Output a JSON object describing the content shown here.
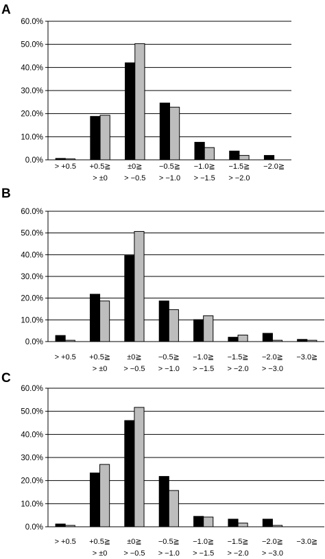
{
  "chart_data": [
    {
      "type": "bar",
      "panel_label": "A",
      "categories": [
        [
          "> +0.5"
        ],
        [
          "+0.5≧",
          "> ±0"
        ],
        [
          "±0≧",
          "> −0.5"
        ],
        [
          "−0.5≧",
          "> −1.0"
        ],
        [
          "−1.0≧",
          "> −1.5"
        ],
        [
          "−1.5≧",
          "> −2.0"
        ],
        [
          "−2.0≧"
        ]
      ],
      "series": [
        {
          "color": "#000000",
          "values": [
            0.6,
            18.8,
            42.0,
            24.6,
            7.6,
            3.8,
            1.9
          ]
        },
        {
          "color": "#bdbdbd",
          "values": [
            0.4,
            19.3,
            50.3,
            22.8,
            5.3,
            1.9,
            0.0
          ]
        }
      ],
      "yticks": [
        "0.0%",
        "10.0%",
        "20.0%",
        "30.0%",
        "40.0%",
        "50.0%",
        "60.0%"
      ],
      "ylim": [
        0,
        60
      ],
      "grid": true
    },
    {
      "type": "bar",
      "panel_label": "B",
      "categories": [
        [
          "> +0.5"
        ],
        [
          "+0.5≧",
          "> ±0"
        ],
        [
          "±0≧",
          "> −0.5"
        ],
        [
          "−0.5≧",
          "> −1.0"
        ],
        [
          "−1.0≧",
          "> −1.5"
        ],
        [
          "−1.5≧",
          "> −2.0"
        ],
        [
          "−2.0≧",
          "> −3.0"
        ],
        [
          "−3.0≧"
        ]
      ],
      "series": [
        {
          "color": "#000000",
          "values": [
            2.8,
            21.8,
            39.6,
            18.7,
            10.1,
            2.0,
            3.8,
            1.0
          ]
        },
        {
          "color": "#bdbdbd",
          "values": [
            0.6,
            18.7,
            50.7,
            14.7,
            11.9,
            3.0,
            0.6,
            0.6
          ]
        }
      ],
      "yticks": [
        "0.0%",
        "10.0%",
        "20.0%",
        "30.0%",
        "40.0%",
        "50.0%",
        "60.0%"
      ],
      "ylim": [
        0,
        60
      ],
      "grid": true
    },
    {
      "type": "bar",
      "panel_label": "C",
      "categories": [
        [
          "> +0.5"
        ],
        [
          "+0.5≧",
          "> ±0"
        ],
        [
          "±0≧",
          "> −0.5"
        ],
        [
          "−0.5≧",
          "> −1.0"
        ],
        [
          "−1.0≧",
          "> −1.5"
        ],
        [
          "−1.5≧",
          "> −2.0"
        ],
        [
          "−2.0≧",
          "> −3.0"
        ],
        [
          "−3.0≧"
        ]
      ],
      "series": [
        {
          "color": "#000000",
          "values": [
            1.2,
            23.3,
            46.0,
            21.8,
            4.5,
            3.3,
            3.3,
            0.0
          ]
        },
        {
          "color": "#bdbdbd",
          "values": [
            0.6,
            27.0,
            51.7,
            15.7,
            4.2,
            1.6,
            0.6,
            0.0
          ]
        }
      ],
      "yticks": [
        "0.0%",
        "10.0%",
        "20.0%",
        "30.0%",
        "40.0%",
        "50.0%",
        "60.0%"
      ],
      "ylim": [
        0,
        60
      ],
      "grid": true
    }
  ]
}
